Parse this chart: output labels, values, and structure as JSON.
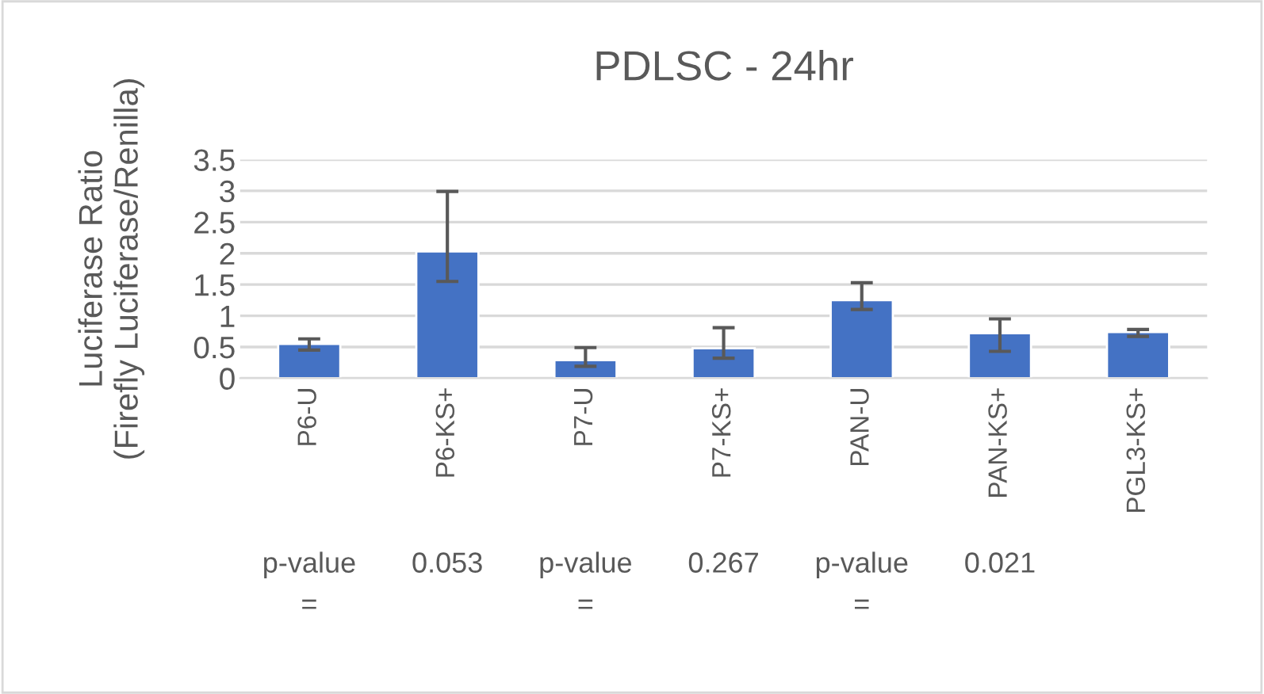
{
  "chart_data": {
    "type": "bar",
    "title": "PDLSC - 24hr",
    "ylabel": "Luciferase Ratio\n(Firefly Luciferase/Renilla)",
    "categories": [
      "P6-U",
      "P6-KS+",
      "P7-U",
      "P7-KS+",
      "PAN-U",
      "PAN-KS+",
      "PGL3-KS+"
    ],
    "values": [
      0.55,
      2.03,
      0.29,
      0.48,
      1.25,
      0.72,
      0.74
    ],
    "errors": [
      [
        0.45,
        0.63
      ],
      [
        1.55,
        2.99
      ],
      [
        0.19,
        0.49
      ],
      [
        0.32,
        0.81
      ],
      [
        1.1,
        1.53
      ],
      [
        0.43,
        0.95
      ],
      [
        0.67,
        0.78
      ]
    ],
    "color": "#4472c4",
    "ylim": [
      0,
      3.5
    ],
    "yticks": [
      0,
      0.5,
      1,
      1.5,
      2,
      2.5,
      3,
      3.5
    ],
    "grid": "y",
    "annotations": [
      "p-value\n=",
      "0.053",
      "p-value\n=",
      "0.267",
      "p-value\n=",
      "0.021"
    ]
  }
}
